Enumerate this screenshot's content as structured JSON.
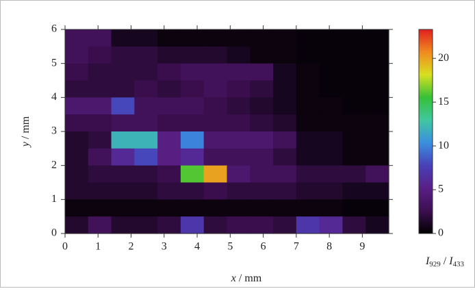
{
  "chart_data": {
    "type": "heatmap",
    "x_label": [
      "x",
      " / mm"
    ],
    "y_label": [
      "y",
      " / mm"
    ],
    "colorbar_label": [
      "I",
      "929",
      " / ",
      "I",
      "433"
    ],
    "x": [
      0.35,
      1.05,
      1.75,
      2.45,
      3.15,
      3.85,
      4.55,
      5.25,
      5.95,
      6.65,
      7.35,
      8.05,
      8.75,
      9.45
    ],
    "y": [
      5.75,
      5.25,
      4.75,
      4.25,
      3.75,
      3.25,
      2.75,
      2.25,
      1.75,
      1.25,
      0.75,
      0.25
    ],
    "values": [
      [
        3,
        3,
        1,
        1,
        0.5,
        0.5,
        0.5,
        0.5,
        0.5,
        0.5,
        0.3,
        0.3,
        0.3,
        0.3
      ],
      [
        3,
        2.5,
        2,
        2,
        1.5,
        1.5,
        1.5,
        1,
        0.5,
        0.5,
        0.3,
        0.3,
        0.3,
        0.3
      ],
      [
        2.5,
        2,
        2,
        2,
        2.5,
        3,
        3,
        3,
        3,
        1,
        0.5,
        0.3,
        0.3,
        0.3
      ],
      [
        2,
        2,
        2,
        2.5,
        2,
        2.5,
        3,
        2.5,
        2,
        1,
        0.5,
        0.3,
        0.3,
        0.3
      ],
      [
        4,
        4,
        8,
        3,
        3,
        3,
        2.5,
        2,
        1.5,
        1,
        0.5,
        0.5,
        0.3,
        0.3
      ],
      [
        2.5,
        2.5,
        3,
        3,
        2.5,
        2.5,
        2.5,
        2.5,
        2,
        1.5,
        0.5,
        0.5,
        0.5,
        0.5
      ],
      [
        1.5,
        2,
        12,
        12,
        5,
        10,
        4,
        4,
        4,
        3,
        1,
        1,
        0.5,
        0.5
      ],
      [
        1.5,
        3,
        6,
        8,
        5,
        6,
        3,
        3,
        3,
        2,
        1,
        1,
        0.5,
        0.5
      ],
      [
        1.5,
        2,
        2,
        2,
        2.5,
        16,
        20,
        4,
        3,
        3,
        2,
        2,
        2,
        3
      ],
      [
        1.5,
        1.5,
        1.5,
        1.5,
        2,
        2,
        2.5,
        2,
        2,
        2,
        1.5,
        1.5,
        1,
        1
      ],
      [
        0.5,
        0.5,
        0.5,
        0.5,
        0.5,
        0.5,
        0.5,
        0.5,
        0.5,
        0.5,
        0.5,
        0.5,
        0.3,
        0.3
      ],
      [
        1.5,
        3,
        1.5,
        1.5,
        2,
        7,
        2,
        2.5,
        2.5,
        2,
        7,
        6,
        2,
        1
      ]
    ],
    "xlim": [
      0,
      9.8
    ],
    "xticks": [
      0,
      1,
      2,
      3,
      4,
      5,
      6,
      7,
      8,
      9
    ],
    "ylim": [
      0,
      6
    ],
    "yticks": [
      0,
      1,
      2,
      3,
      4,
      5,
      6
    ],
    "clim": [
      0,
      23.3
    ],
    "cticks": [
      0,
      5,
      10,
      15,
      20
    ],
    "colormap": [
      "#000000",
      "#3c0f50",
      "#5a1f86",
      "#4840b8",
      "#3a8fe0",
      "#40c8a0",
      "#36c038",
      "#d8e020",
      "#f08a20",
      "#e02020"
    ]
  }
}
